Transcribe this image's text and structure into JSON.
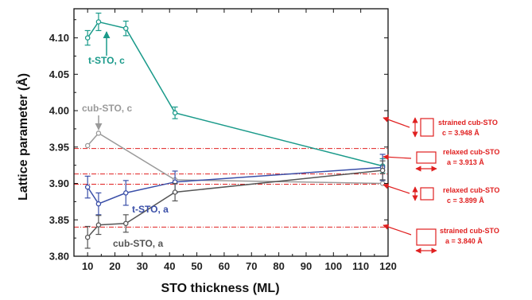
{
  "chart_data": {
    "type": "line",
    "xlabel": "STO thickness (ML)",
    "ylabel": "Lattice parameter (Å)",
    "xlim": [
      5,
      120
    ],
    "ylim": [
      3.8,
      4.14
    ],
    "xticks": [
      10,
      20,
      30,
      40,
      50,
      60,
      70,
      80,
      90,
      100,
      110,
      120
    ],
    "yticks": [
      3.8,
      3.85,
      3.9,
      3.95,
      4.0,
      4.05,
      4.1
    ],
    "series": [
      {
        "name": "t-STO, c",
        "color": "#1a9a8a",
        "x": [
          10,
          14,
          24,
          42,
          118
        ],
        "y": [
          4.1,
          4.122,
          4.113,
          3.997,
          3.924
        ],
        "err": [
          0.01,
          0.012,
          0.01,
          0.008,
          0.01
        ]
      },
      {
        "name": "cub-STO, c",
        "color": "#9a9a9a",
        "x": [
          10,
          14,
          42,
          118
        ],
        "y": [
          3.952,
          3.969,
          3.905,
          3.9
        ],
        "err": [
          0,
          0,
          0,
          0
        ]
      },
      {
        "name": "t-STO, a",
        "color": "#3a4fa8",
        "x": [
          10,
          14,
          24,
          42,
          118
        ],
        "y": [
          3.895,
          3.872,
          3.887,
          3.902,
          3.922
        ],
        "err": [
          0.015,
          0.015,
          0.017,
          0.015,
          0.018
        ]
      },
      {
        "name": "cub-STO, a",
        "color": "#555555",
        "x": [
          10,
          14,
          24,
          42,
          118
        ],
        "y": [
          3.826,
          3.843,
          3.845,
          3.888,
          3.918
        ],
        "err": [
          0.015,
          0.013,
          0.012,
          0.012,
          0.013
        ]
      }
    ],
    "reference_lines": [
      {
        "y": 3.948,
        "color": "#e02020",
        "style": "dashdot"
      },
      {
        "y": 3.913,
        "color": "#e02020",
        "style": "dashdot"
      },
      {
        "y": 3.899,
        "color": "#e02020",
        "style": "dashdot"
      },
      {
        "y": 3.84,
        "color": "#e02020",
        "style": "dashdot"
      }
    ],
    "annotations": [
      {
        "line1": "strained cub-STO",
        "line2": "c = 3.948 Å"
      },
      {
        "line1": "relaxed cub-STO",
        "line2": "a = 3.913 Å"
      },
      {
        "line1": "relaxed cub-STO",
        "line2": "c = 3.899 Å"
      },
      {
        "line1": "strained cub-STO",
        "line2": "a = 3.840 Å"
      }
    ],
    "grid": false
  }
}
